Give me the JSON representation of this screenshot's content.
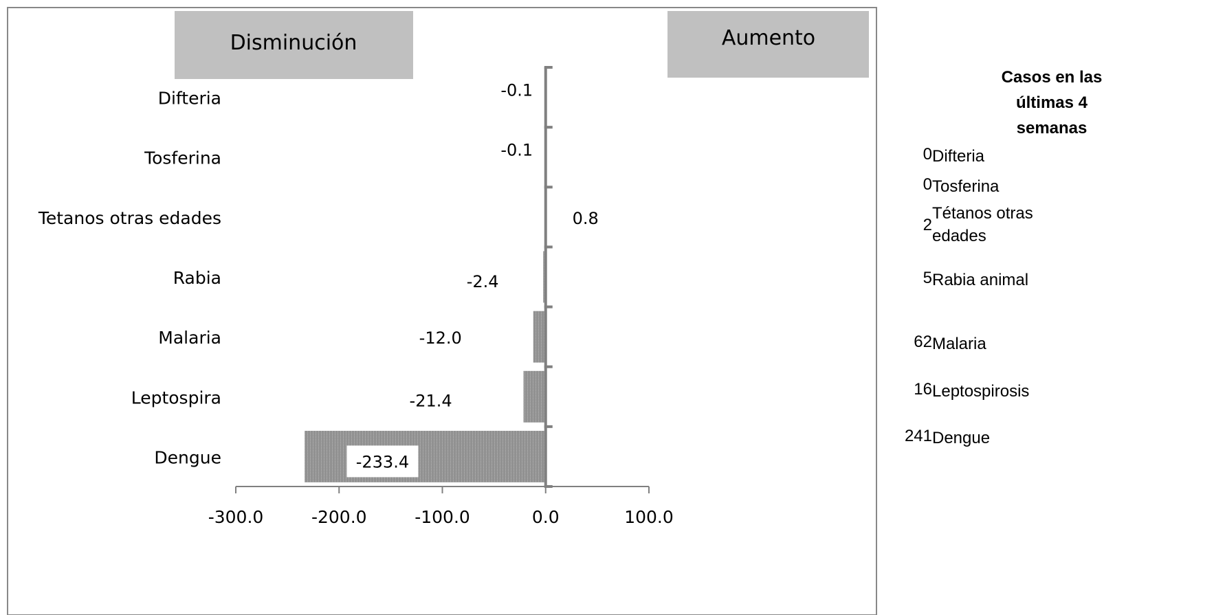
{
  "chart_data": {
    "type": "bar",
    "orientation": "horizontal",
    "categories": [
      "Difteria",
      "Tosferina",
      "Tetanos otras edades",
      "Rabia",
      "Malaria",
      "Leptospira",
      "Dengue"
    ],
    "values": [
      -0.1,
      -0.1,
      0.8,
      -2.4,
      -12.0,
      -21.4,
      -233.4
    ],
    "value_labels": [
      "-0.1",
      "-0.1",
      "0.8",
      "-2.4",
      "-12.0",
      "-21.4",
      "-233.4"
    ],
    "xlim": [
      -300,
      100
    ],
    "xticks": [
      "-300.0",
      "-200.0",
      "-100.0",
      "0.0",
      "100.0"
    ],
    "title": "",
    "xlabel": "",
    "ylabel": "",
    "bar_color": "#9a9a9a",
    "header_color": "#c0c0c0",
    "grid": false,
    "legend": "none"
  },
  "headers": {
    "decrease": "Disminución",
    "increase": "Aumento"
  },
  "side_panel": {
    "title": "Casos en las últimas 4 semanas",
    "rows": [
      {
        "count": "0",
        "name": "Difteria"
      },
      {
        "count": "0",
        "name": "Tosferina"
      },
      {
        "count": "2",
        "name": "Tétanos otras edades"
      },
      {
        "count": "5",
        "name": "Rabia animal"
      },
      {
        "count": "62",
        "name": "Malaria"
      },
      {
        "count": "16",
        "name": "Leptospirosis"
      },
      {
        "count": "241",
        "name": "Dengue"
      }
    ]
  }
}
